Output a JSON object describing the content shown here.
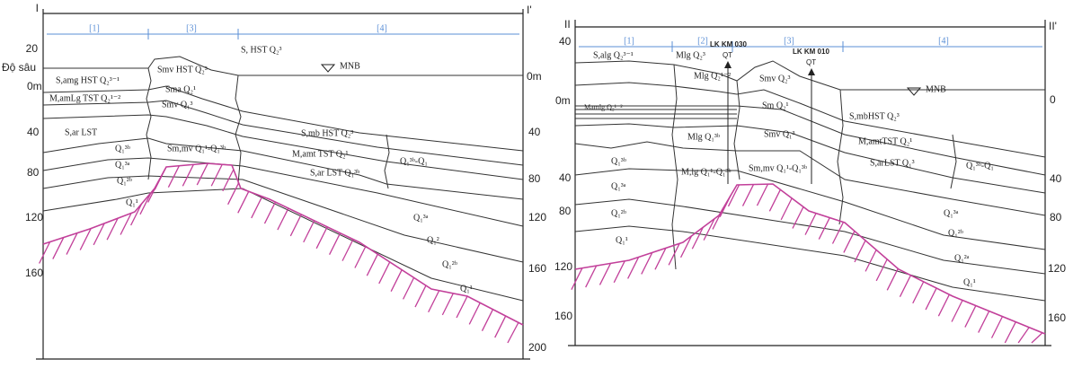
{
  "left": {
    "section_start": "I",
    "section_end": "I'",
    "zones": [
      "[1]",
      "[3]",
      "[4]"
    ],
    "depth_title": "Độ sâu",
    "depth_left": [
      "20",
      "0m",
      "40",
      "80",
      "120",
      "160"
    ],
    "depth_right": [
      "0m",
      "40",
      "80",
      "120",
      "160",
      "200"
    ],
    "water_level": "MNB",
    "units": [
      "S,amg HST Q₂³⁻¹",
      "M,amLg TST Q₂¹⁻²",
      "S,ar LST",
      "Q₁³ᵇ",
      "Q₁³ᵃ",
      "Q₁²ᵇ",
      "Q₁¹",
      "Smv HST Q₂³",
      "Sma Q₂¹",
      "Smv Q₁³",
      "S, HST Q₂³",
      "Sm,mv Q₁¹-Q₁³ᵇ",
      "S,mb HST Q₂³",
      "M,amt TST Q₂¹",
      "S,ar LST Q₁³ᵇ",
      "Q₁³ᵇ-Q₁",
      "Q₁³ᵃ",
      "Q₁²",
      "Q₁²ᵇ",
      "Q₁¹"
    ]
  },
  "right": {
    "section_start": "II",
    "section_end": "II'",
    "zones": [
      "[1]",
      "[2]",
      "[3]",
      "[4]"
    ],
    "depth_left": [
      "40",
      "0m",
      "40",
      "80",
      "120",
      "160"
    ],
    "depth_right": [
      "0",
      "40",
      "80",
      "120",
      "160"
    ],
    "water_level": "MNB",
    "boreholes": [
      {
        "name": "LK KM 030",
        "code": "QT"
      },
      {
        "name": "LK KM 010",
        "code": "QT"
      }
    ],
    "units": [
      "S,alg Q₂³⁻¹",
      "Mlg Q₂³",
      "Mlg Q₂¹⁻²",
      "Mamlg Q₂¹⁻²",
      "Mlg Q₁³ᵇ",
      "Smv Q₂³",
      "Sm Q₂¹",
      "Smv Q₁³",
      "M,lg Q₁¹-Q₁³ᵇ",
      "Sm,mv Q₁¹-Q₁³ᵇ",
      "S,mbHST Q₂³",
      "M,amtTST Q₂¹",
      "S,arLST Q₁³",
      "Q₁³ᵇ-Q₁",
      "Q₁³ᵇ",
      "Q₁³ᵃ",
      "Q₁²ᵇ",
      "Q₁¹",
      "Q₁³ᵃ",
      "Q₁²ᵇ",
      "Q₁²ᵃ",
      "Q₁¹"
    ]
  }
}
